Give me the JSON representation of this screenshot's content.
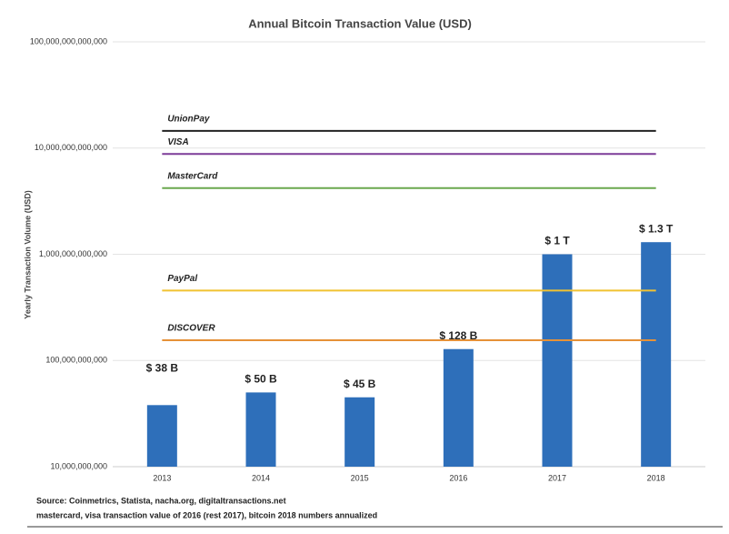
{
  "chart_data": {
    "type": "bar",
    "title": "Annual Bitcoin Transaction Value (USD)",
    "y_label": "Yearly Transaction Volume (USD)",
    "categories": [
      "2013",
      "2014",
      "2015",
      "2016",
      "2017",
      "2018"
    ],
    "values": [
      38000000000,
      50000000000,
      45000000000,
      128000000000,
      1000000000000,
      1300000000000
    ],
    "value_labels": [
      "$ 38 B",
      "$ 50 B",
      "$ 45 B",
      "$ 128 B",
      "$ 1 T",
      "$ 1.3 T"
    ],
    "color": "#2e6fba",
    "yscale": "log",
    "ylim": [
      10000000000,
      100000000000000
    ],
    "yticks": [
      {
        "value": 10000000000,
        "label": "10,000,000,000"
      },
      {
        "value": 100000000000,
        "label": "100,000,000,000"
      },
      {
        "value": 1000000000000,
        "label": "1,000,000,000,000"
      },
      {
        "value": 10000000000000,
        "label": "10,000,000,000,000"
      },
      {
        "value": 100000000000000,
        "label": "100,000,000,000,000"
      }
    ],
    "grid": true,
    "reference_lines": [
      {
        "name": "UnionPay",
        "color": "#222222",
        "value": 14500000000000
      },
      {
        "name": "VISA",
        "color": "#7d3c98",
        "value": 8800000000000
      },
      {
        "name": "MasterCard",
        "color": "#6aa84f",
        "value": 4200000000000
      },
      {
        "name": "PayPal",
        "color": "#f1c232",
        "value": 455000000000
      },
      {
        "name": "DISCOVER",
        "color": "#e69138",
        "value": 155000000000
      }
    ],
    "notes": [
      "Source: Coinmetrics, Statista, nacha.org, digitaltransactions.net",
      "mastercard, visa transaction value of 2016 (rest 2017), bitcoin 2018 numbers annualized"
    ]
  }
}
